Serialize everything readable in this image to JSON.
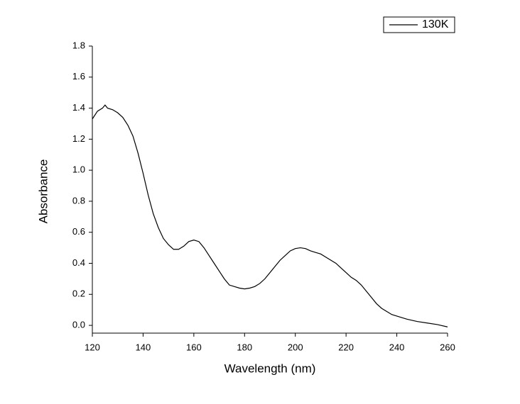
{
  "chart_data": {
    "type": "line",
    "xlabel": "Wavelength (nm)",
    "ylabel": "Absorbance",
    "x": [
      120,
      122,
      124,
      125,
      126,
      128,
      130,
      132,
      134,
      136,
      138,
      140,
      142,
      144,
      146,
      148,
      150,
      152,
      154,
      156,
      158,
      160,
      162,
      164,
      166,
      168,
      170,
      172,
      174,
      176,
      178,
      180,
      182,
      184,
      186,
      188,
      190,
      192,
      194,
      196,
      198,
      200,
      202,
      204,
      206,
      208,
      210,
      212,
      214,
      216,
      218,
      220,
      222,
      224,
      226,
      228,
      230,
      232,
      234,
      236,
      238,
      240,
      244,
      248,
      252,
      256,
      260
    ],
    "series": [
      {
        "name": "130K",
        "color": "#000000",
        "values": [
          1.33,
          1.38,
          1.4,
          1.42,
          1.4,
          1.39,
          1.37,
          1.34,
          1.29,
          1.22,
          1.11,
          0.98,
          0.84,
          0.72,
          0.63,
          0.56,
          0.52,
          0.49,
          0.49,
          0.51,
          0.54,
          0.55,
          0.54,
          0.5,
          0.45,
          0.4,
          0.35,
          0.3,
          0.26,
          0.25,
          0.24,
          0.235,
          0.24,
          0.25,
          0.27,
          0.3,
          0.34,
          0.38,
          0.42,
          0.45,
          0.48,
          0.495,
          0.5,
          0.495,
          0.48,
          0.47,
          0.46,
          0.44,
          0.42,
          0.4,
          0.37,
          0.34,
          0.31,
          0.29,
          0.26,
          0.22,
          0.18,
          0.14,
          0.11,
          0.09,
          0.07,
          0.06,
          0.04,
          0.025,
          0.015,
          0.005,
          -0.01
        ]
      }
    ],
    "xlim": [
      120,
      260
    ],
    "xticks": [
      120,
      140,
      160,
      180,
      200,
      220,
      240,
      260
    ],
    "ylim": [
      -0.05,
      1.8
    ],
    "yticks": [
      {
        "value": 0,
        "label": "0.0"
      },
      {
        "value": 0.2,
        "label": "0.2"
      },
      {
        "value": 0.4,
        "label": "0.4"
      },
      {
        "value": 0.6,
        "label": "0.6"
      },
      {
        "value": 0.8,
        "label": "0.8"
      },
      {
        "value": 1.0,
        "label": "1.0"
      },
      {
        "value": 1.2,
        "label": "1.2"
      },
      {
        "value": 1.4,
        "label": "1.4"
      },
      {
        "value": 1.6,
        "label": "1.6"
      },
      {
        "value": 1.8,
        "label": "1.8"
      }
    ],
    "legend": "top-right",
    "grid": false
  }
}
